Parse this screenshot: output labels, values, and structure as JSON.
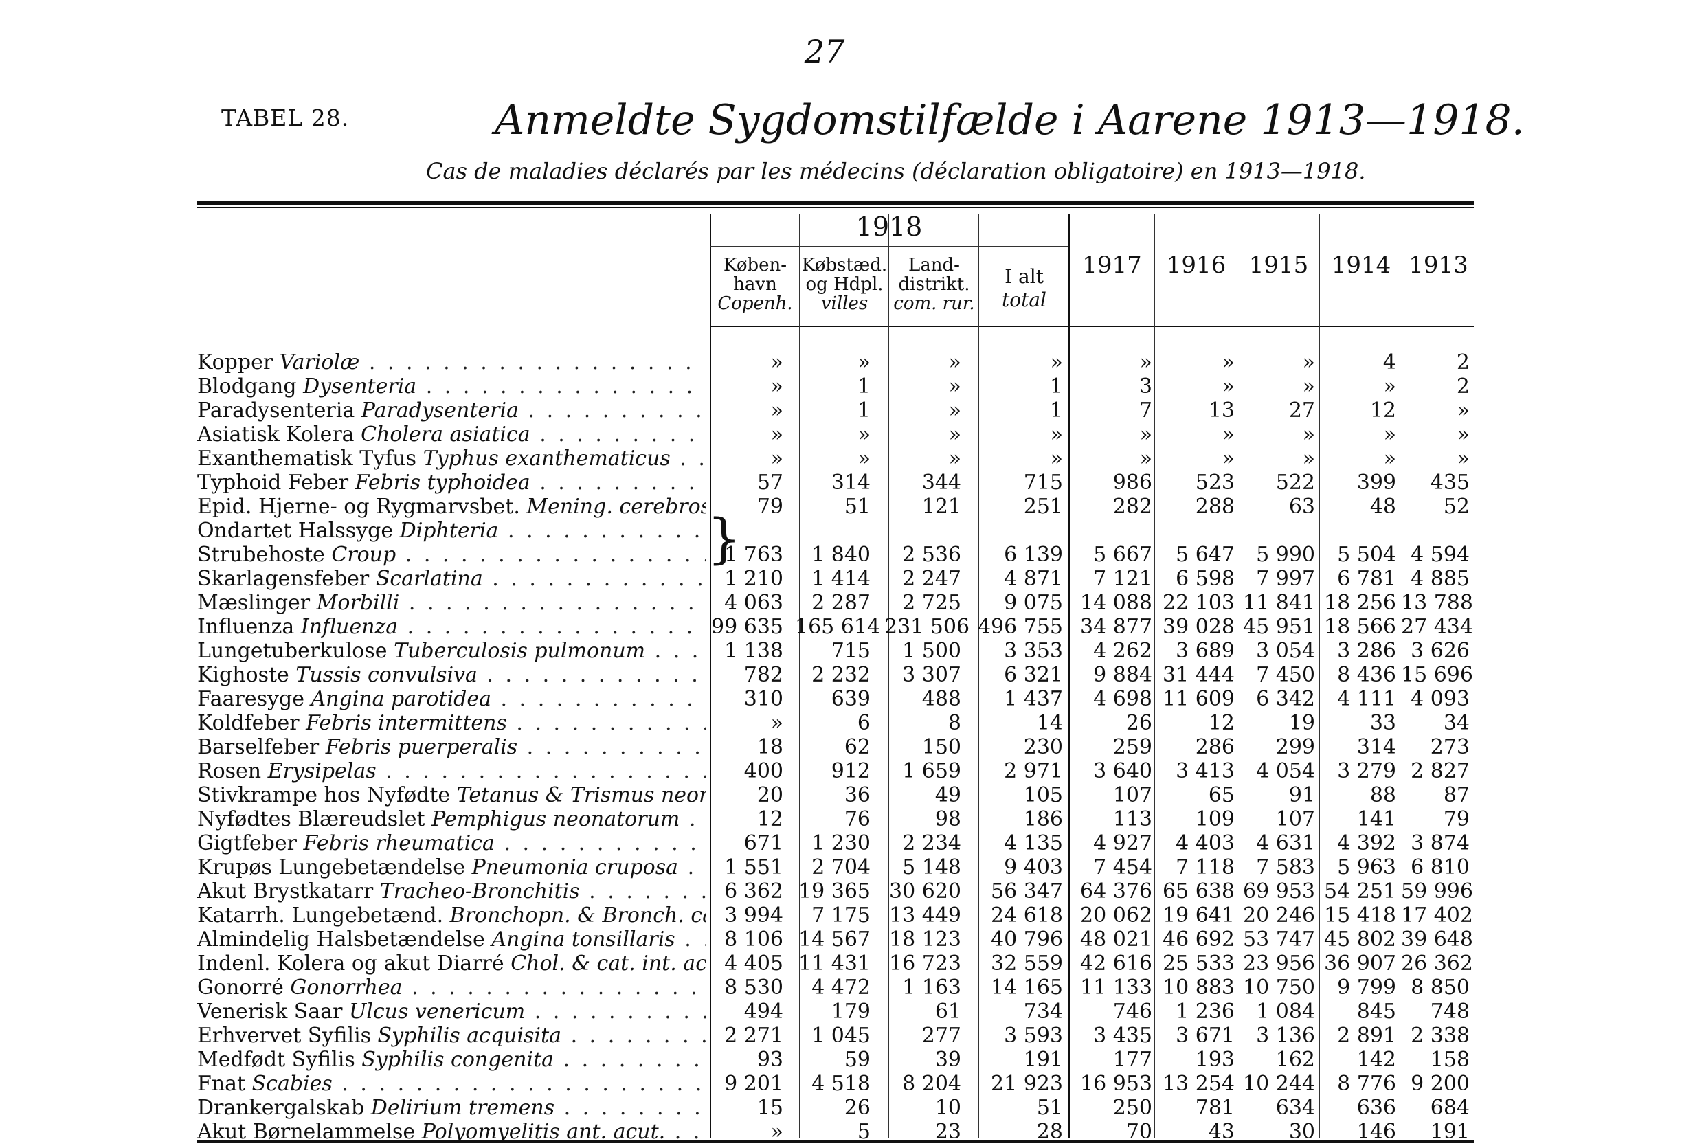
{
  "page_number": "27",
  "table_label": "TABEL 28.",
  "title": "Anmeldte Sygdomstilfælde i Aarene 1913—1918.",
  "subtitle": "Cas de maladies déclarés par les médecins (déclaration obligatoire) en 1913—1918.",
  "header": {
    "year_group": "1918",
    "col_kbh": [
      "Køben-",
      "havn",
      "Copenh."
    ],
    "col_kbst": [
      "Købstæd.",
      "og Hdpl.",
      "villes"
    ],
    "col_land": [
      "Land-",
      "distrikt.",
      "com. rur."
    ],
    "col_ialt": [
      "I alt",
      "total"
    ],
    "years": [
      "1917",
      "1916",
      "1915",
      "1914",
      "1913"
    ]
  },
  "rows": [
    {
      "da": "Kopper",
      "la": "Variolæ",
      "v": [
        "»",
        "»",
        "»",
        "»",
        "»",
        "»",
        "»",
        "4",
        "2"
      ]
    },
    {
      "da": "Blodgang",
      "la": "Dysenteria",
      "v": [
        "»",
        "1",
        "»",
        "1",
        "3",
        "»",
        "»",
        "»",
        "2"
      ]
    },
    {
      "da": "Paradysenteria",
      "la": "Paradysenteria",
      "v": [
        "»",
        "1",
        "»",
        "1",
        "7",
        "13",
        "27",
        "12",
        "»"
      ]
    },
    {
      "da": "Asiatisk Kolera",
      "la": "Cholera asiatica",
      "v": [
        "»",
        "»",
        "»",
        "»",
        "»",
        "»",
        "»",
        "»",
        "»"
      ]
    },
    {
      "da": "Exanthematisk Tyfus",
      "la": "Typhus exanthematicus",
      "v": [
        "»",
        "»",
        "»",
        "»",
        "»",
        "»",
        "»",
        "»",
        "»"
      ]
    },
    {
      "da": "Typhoid Feber",
      "la": "Febris typhoidea",
      "v": [
        "57",
        "314",
        "344",
        "715",
        "986",
        "523",
        "522",
        "399",
        "435"
      ]
    },
    {
      "da": "Epid. Hjerne- og Rygmarvsbet.",
      "la": "Mening. cerebrosp. ep.",
      "v": [
        "79",
        "51",
        "121",
        "251",
        "282",
        "288",
        "63",
        "48",
        "52"
      ]
    },
    {
      "da": "Ondartet Halssyge",
      "la": "Diphteria",
      "v": [
        "",
        "",
        "",
        "",
        "",
        "",
        "",
        "",
        ""
      ]
    },
    {
      "da": "Strubehoste",
      "la": "Croup",
      "v": [
        "1 763",
        "1 840",
        "2 536",
        "6 139",
        "5 667",
        "5 647",
        "5 990",
        "5 504",
        "4 594"
      ]
    },
    {
      "da": "Skarlagensfeber",
      "la": "Scarlatina",
      "v": [
        "1 210",
        "1 414",
        "2 247",
        "4 871",
        "7 121",
        "6 598",
        "7 997",
        "6 781",
        "4 885"
      ]
    },
    {
      "da": "Mæslinger",
      "la": "Morbilli",
      "v": [
        "4 063",
        "2 287",
        "2 725",
        "9 075",
        "14 088",
        "22 103",
        "11 841",
        "18 256",
        "13 788"
      ]
    },
    {
      "da": "Influenza",
      "la": "Influenza",
      "v": [
        "99 635",
        "165 614",
        "231 506",
        "496 755",
        "34 877",
        "39 028",
        "45 951",
        "18 566",
        "27 434"
      ]
    },
    {
      "da": "Lungetuberkulose",
      "la": "Tuberculosis pulmonum",
      "v": [
        "1 138",
        "715",
        "1 500",
        "3 353",
        "4 262",
        "3 689",
        "3 054",
        "3 286",
        "3 626"
      ]
    },
    {
      "da": "Kighoste",
      "la": "Tussis convulsiva",
      "v": [
        "782",
        "2 232",
        "3 307",
        "6 321",
        "9 884",
        "31 444",
        "7 450",
        "8 436",
        "15 696"
      ]
    },
    {
      "da": "Faaresyge",
      "la": "Angina parotidea",
      "v": [
        "310",
        "639",
        "488",
        "1 437",
        "4 698",
        "11 609",
        "6 342",
        "4 111",
        "4 093"
      ]
    },
    {
      "da": "Koldfeber",
      "la": "Febris intermittens",
      "v": [
        "»",
        "6",
        "8",
        "14",
        "26",
        "12",
        "19",
        "33",
        "34"
      ]
    },
    {
      "da": "Barselfeber",
      "la": "Febris puerperalis",
      "v": [
        "18",
        "62",
        "150",
        "230",
        "259",
        "286",
        "299",
        "314",
        "273"
      ]
    },
    {
      "da": "Rosen",
      "la": "Erysipelas",
      "v": [
        "400",
        "912",
        "1 659",
        "2 971",
        "3 640",
        "3 413",
        "4 054",
        "3 279",
        "2 827"
      ]
    },
    {
      "da": "Stivkrampe hos Nyfødte",
      "la": "Tetanus & Trismus neonat.",
      "v": [
        "20",
        "36",
        "49",
        "105",
        "107",
        "65",
        "91",
        "88",
        "87"
      ]
    },
    {
      "da": "Nyfødtes Blæreudslet",
      "la": "Pemphigus neonatorum",
      "v": [
        "12",
        "76",
        "98",
        "186",
        "113",
        "109",
        "107",
        "141",
        "79"
      ]
    },
    {
      "da": "Gigtfeber",
      "la": "Febris rheumatica",
      "v": [
        "671",
        "1 230",
        "2 234",
        "4 135",
        "4 927",
        "4 403",
        "4 631",
        "4 392",
        "3 874"
      ]
    },
    {
      "da": "Krupøs Lungebetændelse",
      "la": "Pneumonia cruposa",
      "v": [
        "1 551",
        "2 704",
        "5 148",
        "9 403",
        "7 454",
        "7 118",
        "7 583",
        "5 963",
        "6 810"
      ]
    },
    {
      "da": "Akut Brystkatarr",
      "la": "Tracheo-Bronchitis",
      "v": [
        "6 362",
        "19 365",
        "30 620",
        "56 347",
        "64 376",
        "65 638",
        "69 953",
        "54 251",
        "59 996"
      ]
    },
    {
      "da": "Katarrh. Lungebetænd.",
      "la": "Bronchopn. & Bronch. cap.",
      "v": [
        "3 994",
        "7 175",
        "13 449",
        "24 618",
        "20 062",
        "19 641",
        "20 246",
        "15 418",
        "17 402"
      ]
    },
    {
      "da": "Almindelig Halsbetændelse",
      "la": "Angina tonsillaris",
      "v": [
        "8 106",
        "14 567",
        "18 123",
        "40 796",
        "48 021",
        "46 692",
        "53 747",
        "45 802",
        "39 648"
      ]
    },
    {
      "da": "Indenl. Kolera og akut Diarré",
      "la": "Chol. & cat. int. acut.",
      "v": [
        "4 405",
        "11 431",
        "16 723",
        "32 559",
        "42 616",
        "25 533",
        "23 956",
        "36 907",
        "26 362"
      ]
    },
    {
      "da": "Gonorré",
      "la": "Gonorrhea",
      "v": [
        "8 530",
        "4 472",
        "1 163",
        "14 165",
        "11 133",
        "10 883",
        "10 750",
        "9 799",
        "8 850"
      ]
    },
    {
      "da": "Venerisk Saar",
      "la": "Ulcus venericum",
      "v": [
        "494",
        "179",
        "61",
        "734",
        "746",
        "1 236",
        "1 084",
        "845",
        "748"
      ]
    },
    {
      "da": "Erhvervet Syfilis",
      "la": "Syphilis acquisita",
      "v": [
        "2 271",
        "1 045",
        "277",
        "3 593",
        "3 435",
        "3 671",
        "3 136",
        "2 891",
        "2 338"
      ]
    },
    {
      "da": "Medfødt Syfilis",
      "la": "Syphilis congenita",
      "v": [
        "93",
        "59",
        "39",
        "191",
        "177",
        "193",
        "162",
        "142",
        "158"
      ]
    },
    {
      "da": "Fnat",
      "la": "Scabies",
      "v": [
        "9 201",
        "4 518",
        "8 204",
        "21 923",
        "16 953",
        "13 254",
        "10 244",
        "8 776",
        "9 200"
      ]
    },
    {
      "da": "Drankergalskab",
      "la": "Delirium tremens",
      "v": [
        "15",
        "26",
        "10",
        "51",
        "250",
        "781",
        "634",
        "636",
        "684"
      ]
    },
    {
      "da": "Akut Børnelammelse",
      "la": "Polyomyelitis ant. acut.",
      "v": [
        "»",
        "5",
        "23",
        "28",
        "70",
        "43",
        "30",
        "146",
        "191"
      ]
    }
  ]
}
